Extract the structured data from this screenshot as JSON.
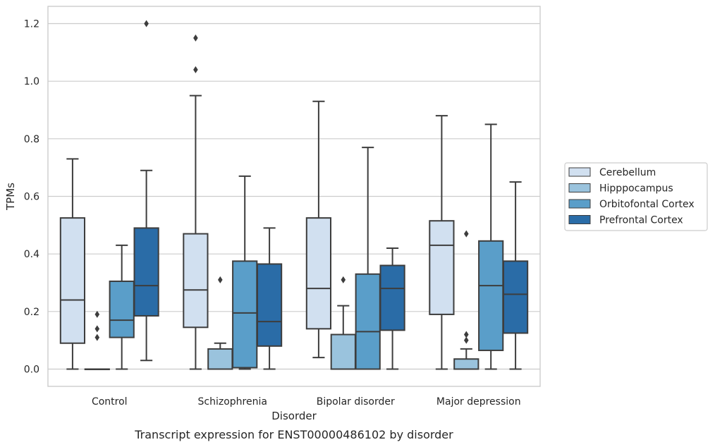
{
  "caption": "Transcript expression for ENST00000486102 by disorder",
  "chart_data": {
    "type": "box",
    "title": "",
    "xlabel": "Disorder",
    "ylabel": "TPMs",
    "ylim": [
      -0.06,
      1.26
    ],
    "yticks": [
      "0.0",
      "0.2",
      "0.4",
      "0.6",
      "0.8",
      "1.0",
      "1.2"
    ],
    "grid": "horizontal",
    "legend_position": "right",
    "categories": [
      "Control",
      "Schizophrenia",
      "Bipolar disorder",
      "Major depression"
    ],
    "series": [
      {
        "name": "Cerebellum",
        "color": "#d1e0f0",
        "boxes": [
          {
            "low": 0.0,
            "q1": 0.09,
            "median": 0.24,
            "q3": 0.525,
            "high": 0.73,
            "outliers": []
          },
          {
            "low": 0.0,
            "q1": 0.145,
            "median": 0.275,
            "q3": 0.47,
            "high": 0.95,
            "outliers": [
              1.04,
              1.15
            ]
          },
          {
            "low": 0.04,
            "q1": 0.14,
            "median": 0.28,
            "q3": 0.525,
            "high": 0.93,
            "outliers": []
          },
          {
            "low": 0.0,
            "q1": 0.19,
            "median": 0.43,
            "q3": 0.515,
            "high": 0.88,
            "outliers": []
          }
        ]
      },
      {
        "name": "Hipppocampus",
        "color": "#9ac3dd",
        "boxes": [
          {
            "low": 0.0,
            "q1": 0.0,
            "median": 0.0,
            "q3": 0.0,
            "high": 0.0,
            "outliers": [
              0.11,
              0.14,
              0.19
            ]
          },
          {
            "low": 0.0,
            "q1": 0.0,
            "median": 0.0,
            "q3": 0.07,
            "high": 0.09,
            "outliers": [
              0.31
            ]
          },
          {
            "low": 0.0,
            "q1": 0.0,
            "median": 0.0,
            "q3": 0.12,
            "high": 0.22,
            "outliers": [
              0.31
            ]
          },
          {
            "low": 0.0,
            "q1": 0.0,
            "median": 0.0,
            "q3": 0.035,
            "high": 0.07,
            "outliers": [
              0.1,
              0.12,
              0.47
            ]
          }
        ]
      },
      {
        "name": "Orbitofontal Cortex",
        "color": "#5a9ec9",
        "boxes": [
          {
            "low": 0.0,
            "q1": 0.11,
            "median": 0.17,
            "q3": 0.305,
            "high": 0.43,
            "outliers": []
          },
          {
            "low": 0.0,
            "q1": 0.005,
            "median": 0.195,
            "q3": 0.375,
            "high": 0.67,
            "outliers": []
          },
          {
            "low": 0.0,
            "q1": 0.0,
            "median": 0.13,
            "q3": 0.33,
            "high": 0.77,
            "outliers": []
          },
          {
            "low": 0.0,
            "q1": 0.065,
            "median": 0.29,
            "q3": 0.445,
            "high": 0.85,
            "outliers": []
          }
        ]
      },
      {
        "name": "Prefrontal Cortex",
        "color": "#2a6ca7",
        "boxes": [
          {
            "low": 0.03,
            "q1": 0.185,
            "median": 0.29,
            "q3": 0.49,
            "high": 0.69,
            "outliers": [
              1.2
            ]
          },
          {
            "low": 0.0,
            "q1": 0.08,
            "median": 0.165,
            "q3": 0.365,
            "high": 0.49,
            "outliers": []
          },
          {
            "low": 0.0,
            "q1": 0.135,
            "median": 0.28,
            "q3": 0.36,
            "high": 0.42,
            "outliers": []
          },
          {
            "low": 0.0,
            "q1": 0.125,
            "median": 0.26,
            "q3": 0.375,
            "high": 0.65,
            "outliers": []
          }
        ]
      }
    ]
  }
}
